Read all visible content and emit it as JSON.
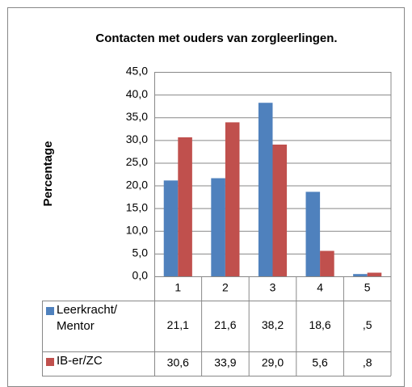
{
  "chart_data": {
    "type": "bar",
    "title": "Contacten met ouders van zorgleerlingen.",
    "y_label": "Percentage",
    "categories": [
      "1",
      "2",
      "3",
      "4",
      "5"
    ],
    "series": [
      {
        "name": "Leerkracht/ Mentor",
        "color": "#4f81bd",
        "values": [
          21.1,
          21.6,
          38.2,
          18.6,
          0.5
        ],
        "value_labels": [
          "21,1",
          "21,6",
          "38,2",
          "18,6",
          ",5"
        ]
      },
      {
        "name": "IB-er/ZC",
        "color": "#c0504d",
        "values": [
          30.6,
          33.9,
          29.0,
          5.6,
          0.8
        ],
        "value_labels": [
          "30,6",
          "33,9",
          "29,0",
          "5,6",
          ",8"
        ]
      }
    ],
    "ylim": [
      0,
      45
    ],
    "yticks": [
      {
        "value": 0,
        "label": "0,0"
      },
      {
        "value": 5,
        "label": "5,0"
      },
      {
        "value": 10,
        "label": "10,0"
      },
      {
        "value": 15,
        "label": "15,0"
      },
      {
        "value": 20,
        "label": "20,0"
      },
      {
        "value": 25,
        "label": "25,0"
      },
      {
        "value": 30,
        "label": "30,0"
      },
      {
        "value": 35,
        "label": "35,0"
      },
      {
        "value": 40,
        "label": "40,0"
      },
      {
        "value": 45,
        "label": "45,0"
      }
    ],
    "grid": true
  }
}
